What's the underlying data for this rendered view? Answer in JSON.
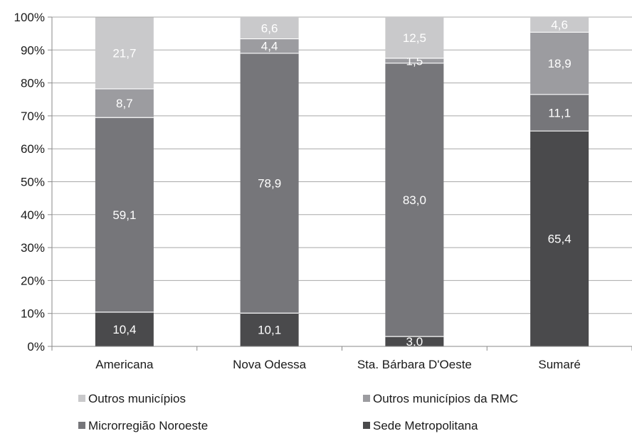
{
  "chart_data": {
    "type": "bar",
    "stacked": true,
    "normalized": true,
    "categories": [
      "Americana",
      "Nova Odessa",
      "Sta. Bárbara D'Oeste",
      "Sumaré"
    ],
    "series": [
      {
        "name": "Sede Metropolitana",
        "color": "#4a4a4c",
        "values": [
          10.4,
          10.1,
          3.0,
          65.4
        ],
        "labels": [
          "10,4",
          "10,1",
          "3,0",
          "65,4"
        ]
      },
      {
        "name": "Microrregião Noroeste",
        "color": "#76767a",
        "values": [
          59.1,
          78.9,
          83.0,
          11.1
        ],
        "labels": [
          "59,1",
          "78,9",
          "83,0",
          "11,1"
        ]
      },
      {
        "name": "Outros municípios da RMC",
        "color": "#9c9ca0",
        "values": [
          8.7,
          4.4,
          1.5,
          18.9
        ],
        "labels": [
          "8,7",
          "4,4",
          "1,5",
          "18,9"
        ]
      },
      {
        "name": "Outros municípios",
        "color": "#c9c9cb",
        "values": [
          21.7,
          6.6,
          12.5,
          4.6
        ],
        "labels": [
          "21,7",
          "6,6",
          "12,5",
          "4,6"
        ]
      }
    ],
    "ylim": [
      0,
      100
    ],
    "yticks": [
      "0%",
      "10%",
      "20%",
      "30%",
      "40%",
      "50%",
      "60%",
      "70%",
      "80%",
      "90%",
      "100%"
    ],
    "grid": true,
    "legend_position": "bottom",
    "legend_order": [
      "Outros municípios",
      "Outros municípios da RMC",
      "Microrregião Noroeste",
      "Sede Metropolitana"
    ]
  }
}
